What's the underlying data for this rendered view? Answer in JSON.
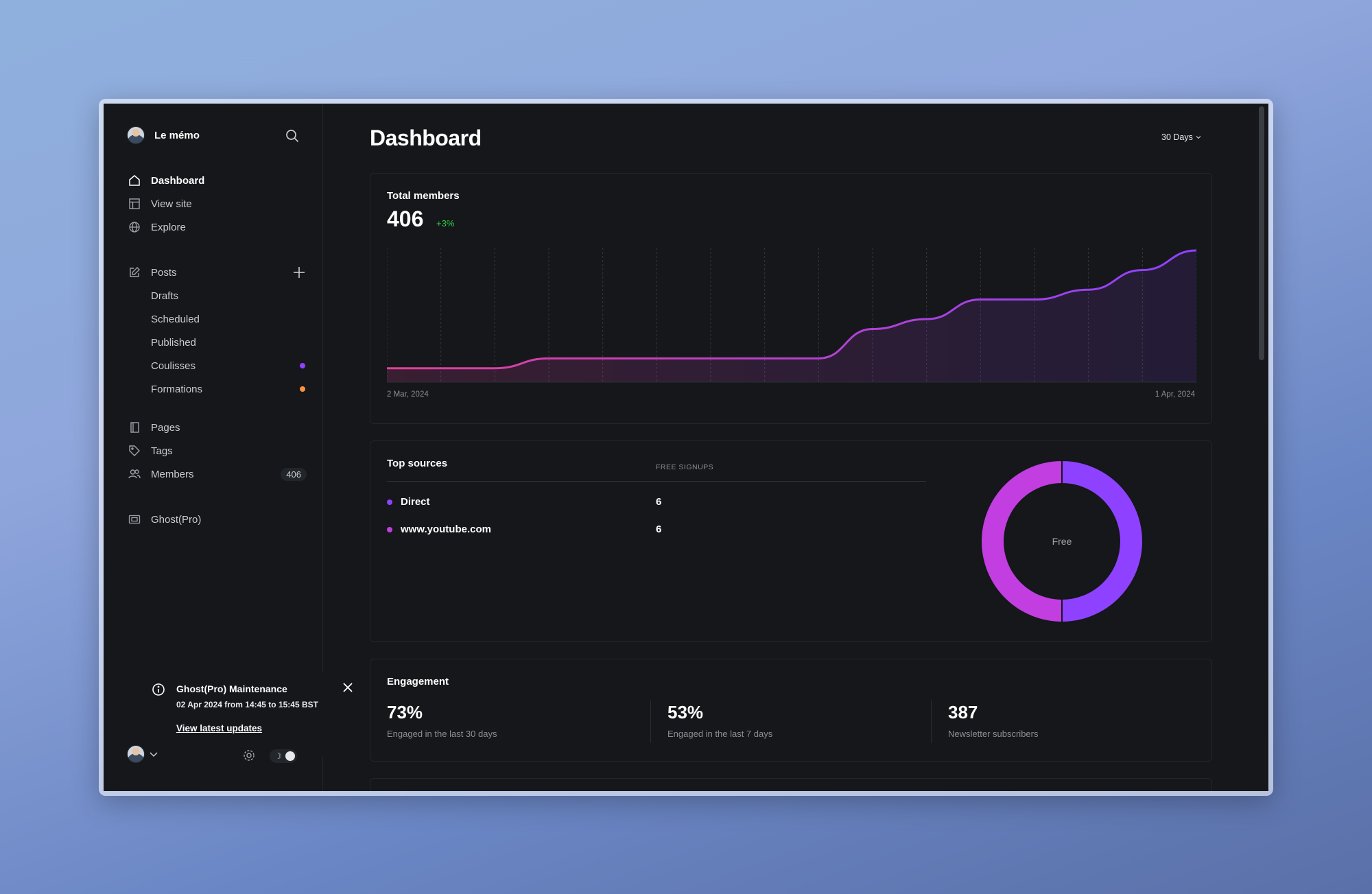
{
  "sidebar": {
    "brand_name": "Le mémo",
    "nav": {
      "dashboard": "Dashboard",
      "view_site": "View site",
      "explore": "Explore",
      "posts": "Posts",
      "drafts": "Drafts",
      "scheduled": "Scheduled",
      "published": "Published",
      "coulisses": "Coulisses",
      "formations": "Formations",
      "pages": "Pages",
      "tags": "Tags",
      "members": "Members",
      "members_count": "406",
      "ghost_pro": "Ghost(Pro)"
    },
    "colors": {
      "coulisses_dot": "#8e42ff",
      "formations_dot": "#fb923c"
    },
    "notification": {
      "title": "Ghost(Pro) Maintenance",
      "subtitle": "02 Apr 2024 from 14:45 to 15:45 BST",
      "link": "View latest updates"
    }
  },
  "header": {
    "title": "Dashboard",
    "range": "30 Days"
  },
  "total_members": {
    "title": "Total members",
    "value": "406",
    "delta": "+3%",
    "date_start": "2 Mar, 2024",
    "date_end": "1 Apr, 2024"
  },
  "top_sources": {
    "title": "Top sources",
    "column": "FREE SIGNUPS",
    "rows": [
      {
        "name": "Direct",
        "value": "6",
        "color": "#8e42ff"
      },
      {
        "name": "www.youtube.com",
        "value": "6",
        "color": "#c23ee0"
      }
    ],
    "donut_label": "Free"
  },
  "engagement": {
    "title": "Engagement",
    "stats": [
      {
        "value": "73%",
        "label": "Engaged in the last 30 days"
      },
      {
        "value": "53%",
        "label": "Engaged in the last 7 days"
      },
      {
        "value": "387",
        "label": "Newsletter subscribers"
      }
    ]
  },
  "chart_data": [
    {
      "type": "area",
      "title": "Total members",
      "x": [
        "2 Mar, 2024",
        "",
        "",
        "",
        "",
        "",
        "",
        "",
        "",
        "",
        "",
        "",
        "",
        "",
        "",
        "1 Apr, 2024"
      ],
      "series": [
        {
          "values": [
            394,
            394,
            394,
            395,
            395,
            395,
            395,
            395,
            395,
            398,
            399,
            401,
            401,
            402,
            404,
            406
          ]
        }
      ],
      "ylim": [
        393,
        406
      ],
      "grid": "vertical-dashed",
      "colors": [
        "#e2409a",
        "#8e42ff"
      ]
    },
    {
      "type": "pie",
      "title": "",
      "categories": [
        "Direct",
        "www.youtube.com"
      ],
      "values": [
        6,
        6
      ],
      "center_label": "Free",
      "colors": [
        "#8e42ff",
        "#c23ee0"
      ]
    }
  ]
}
